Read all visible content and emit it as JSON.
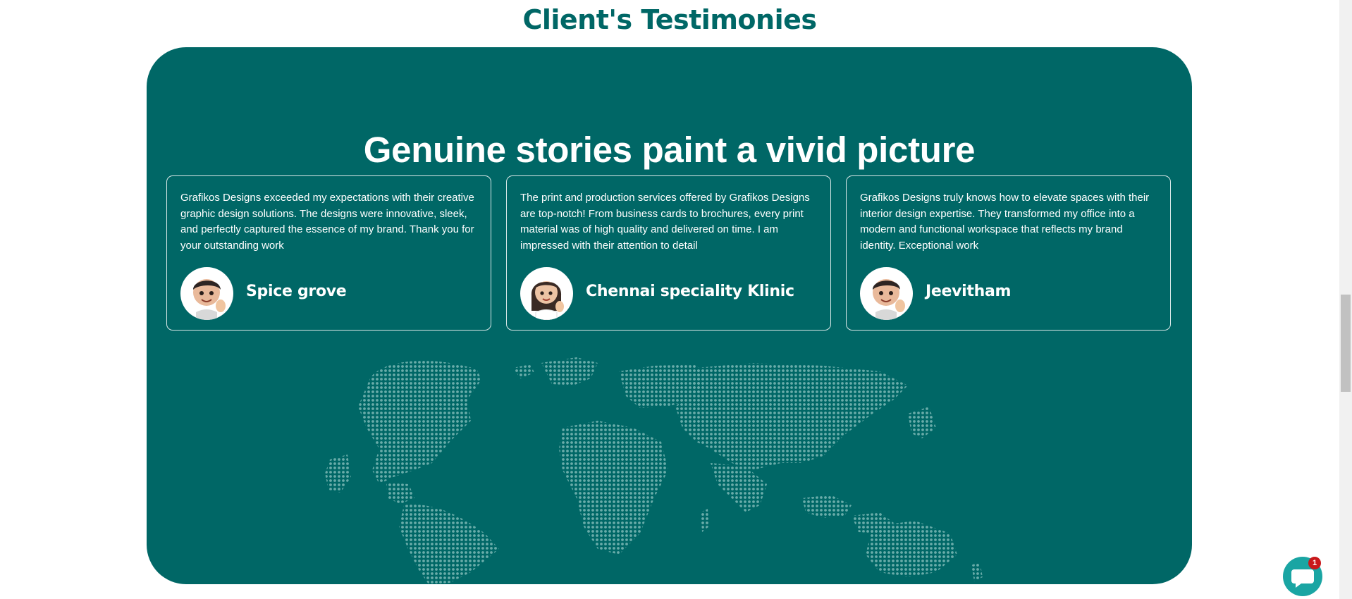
{
  "section": {
    "title": "Client's Testimonies"
  },
  "panel": {
    "heading": "Genuine stories paint a vivid picture",
    "background_color": "#006766"
  },
  "testimonials": [
    {
      "text": "Grafikos Designs exceeded my expectations with their creative graphic design solutions. The designs were innovative, sleek, and perfectly captured the essence of my brand. Thank you for your outstanding work",
      "name": "Spice grove",
      "avatar_icon": "memoji-boy-thumbs-up-icon"
    },
    {
      "text": "The print and production services offered by Grafikos Designs are top-notch! From business cards to brochures, every print material was of high quality and delivered on time. I am impressed with their attention to detail",
      "name": "Chennai speciality Klinic",
      "avatar_icon": "memoji-girl-thumbs-up-icon"
    },
    {
      "text": "Grafikos Designs truly knows how to elevate spaces with their interior design expertise. They transformed my office into a modern and functional workspace that reflects my brand identity. Exceptional work",
      "name": "Jeevitham",
      "avatar_icon": "memoji-boy-thumbs-up-icon"
    }
  ],
  "chat_widget": {
    "icon": "chat-bubble-icon",
    "badge_count": "1",
    "color": "#1aa5a3",
    "badge_color": "#c9181b"
  }
}
